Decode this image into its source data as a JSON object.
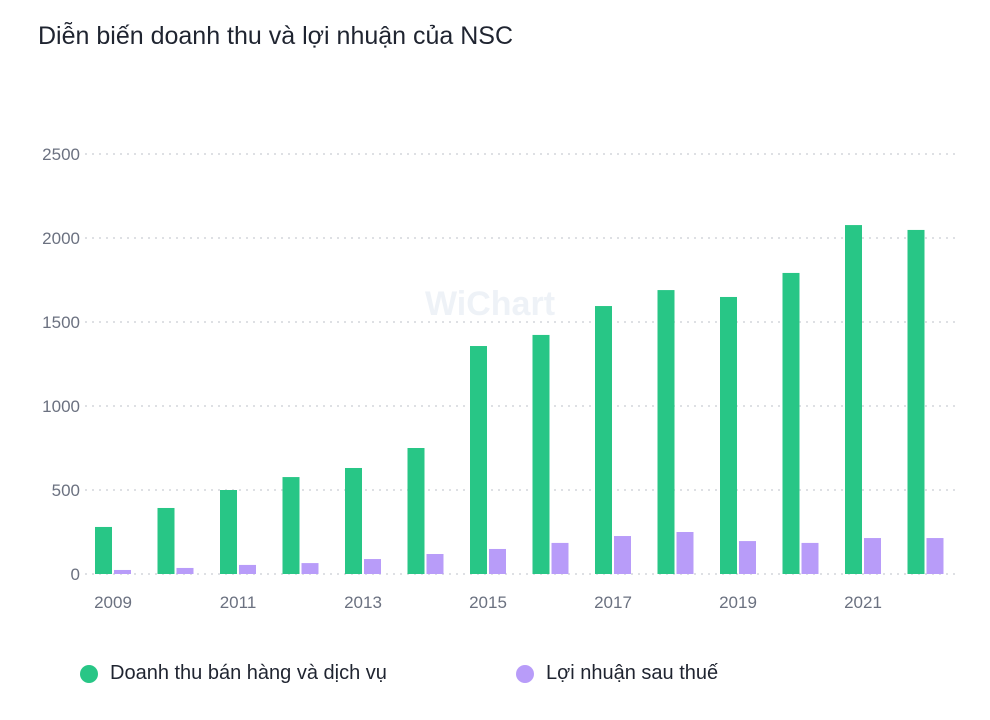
{
  "title": "Diễn biến doanh thu và lợi nhuận của NSC",
  "watermark": "WiChart",
  "chart_data": {
    "type": "bar",
    "title": "Diễn biến doanh thu và lợi nhuận của NSC",
    "xlabel": "",
    "ylabel": "",
    "ylim": [
      0,
      2500
    ],
    "yticks": [
      0,
      500,
      1000,
      1500,
      2000,
      2500
    ],
    "categories": [
      "2009",
      "2010",
      "2011",
      "2012",
      "2013",
      "2014",
      "2015",
      "2016",
      "2017",
      "2018",
      "2019",
      "2020",
      "2021",
      "2022"
    ],
    "xtick_labels": [
      "2009",
      "2011",
      "2013",
      "2015",
      "2017",
      "2019",
      "2021"
    ],
    "grid": true,
    "legend_position": "bottom",
    "series": [
      {
        "name": "Doanh thu bán hàng và dịch vụ",
        "color": "#28c686",
        "values": [
          280,
          393,
          500,
          577,
          631,
          750,
          1357,
          1423,
          1595,
          1690,
          1649,
          1792,
          2077,
          2048
        ]
      },
      {
        "name": "Lợi nhuận sau thuế",
        "color": "#b89cf9",
        "values": [
          24,
          36,
          54,
          65,
          89,
          119,
          149,
          185,
          226,
          250,
          196,
          185,
          214,
          214
        ]
      }
    ]
  }
}
